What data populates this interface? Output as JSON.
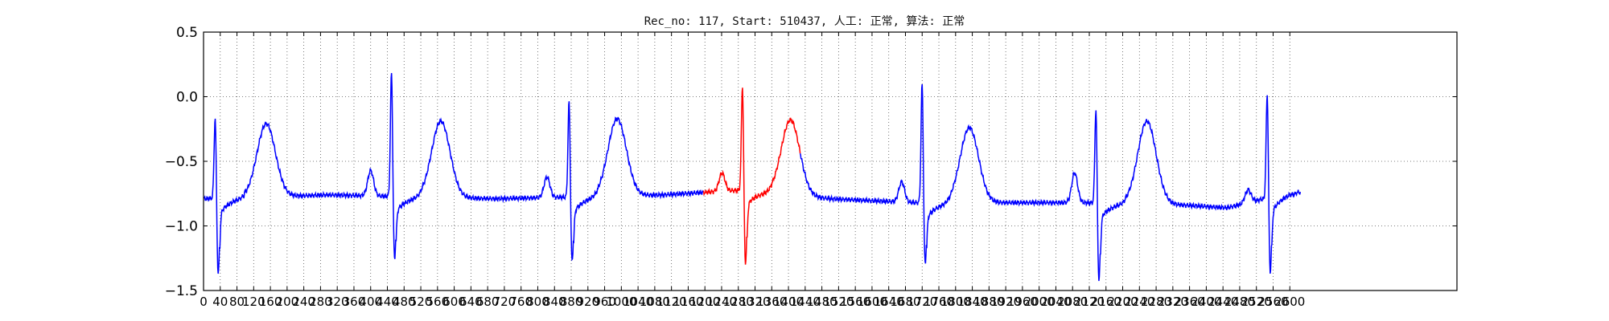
{
  "chart_data": {
    "type": "line",
    "title": "Rec_no: 117, Start: 510437, 人工: 正常, 算法: 正常",
    "xlabel": "",
    "ylabel": "",
    "xlim": [
      0,
      3000
    ],
    "ylim": [
      -1.5,
      0.5
    ],
    "yticks": [
      0.5,
      0.0,
      -0.5,
      -1.0,
      -1.5
    ],
    "ytick_labels": [
      "0.5",
      "0.0",
      "−0.5",
      "−1.0",
      "−1.5"
    ],
    "xticks": [
      0,
      40,
      80,
      120,
      160,
      200,
      240,
      280,
      320,
      360,
      400,
      440,
      480,
      520,
      560,
      600,
      640,
      680,
      720,
      760,
      800,
      840,
      880,
      920,
      960,
      1000,
      1040,
      1080,
      1120,
      1160,
      1200,
      1240,
      1280,
      1320,
      1360,
      1400,
      1440,
      1480,
      1520,
      1560,
      1600,
      1640,
      1680,
      1720,
      1760,
      1800,
      1840,
      1880,
      1920,
      1960,
      2000,
      2040,
      2080,
      2120,
      2160,
      2200,
      2240,
      2280,
      2320,
      2360,
      2400,
      2440,
      2480,
      2520,
      2560,
      2600
    ],
    "grid": true,
    "colors": {
      "series_main": "#0000ff",
      "series_highlight": "#ff0000",
      "axes": "#000000",
      "grid": "#555555"
    },
    "beats": [
      {
        "r": 28,
        "rpeak": -0.12,
        "s": -1.42
      },
      {
        "r": 450,
        "rpeak": 0.23,
        "s": -1.3
      },
      {
        "r": 875,
        "rpeak": 0.0,
        "s": -1.32
      },
      {
        "r": 1290,
        "rpeak": 0.13,
        "s": -1.34
      },
      {
        "r": 1720,
        "rpeak": 0.14,
        "s": -1.34
      },
      {
        "r": 2136,
        "rpeak": -0.05,
        "s": -1.47
      },
      {
        "r": 2546,
        "rpeak": 0.07,
        "s": -1.41
      }
    ],
    "t_waves": [
      {
        "x": 150,
        "peak": -0.21
      },
      {
        "x": 568,
        "peak": -0.19
      },
      {
        "x": 990,
        "peak": -0.17
      },
      {
        "x": 1405,
        "peak": -0.18
      },
      {
        "x": 1833,
        "peak": -0.24
      },
      {
        "x": 2258,
        "peak": -0.19
      }
    ],
    "p_waves": [
      {
        "x": 400,
        "peak": -0.57
      },
      {
        "x": 822,
        "peak": -0.62
      },
      {
        "x": 1241,
        "peak": -0.59
      },
      {
        "x": 1671,
        "peak": -0.66
      },
      {
        "x": 2085,
        "peak": -0.59
      },
      {
        "x": 2500,
        "peak": -0.72
      }
    ],
    "baseline": [
      [
        0,
        -0.79
      ],
      [
        300,
        -0.76
      ],
      [
        700,
        -0.79
      ],
      [
        1100,
        -0.76
      ],
      [
        1300,
        -0.72
      ],
      [
        1500,
        -0.79
      ],
      [
        1700,
        -0.82
      ],
      [
        1900,
        -0.82
      ],
      [
        2100,
        -0.82
      ],
      [
        2300,
        -0.83
      ],
      [
        2450,
        -0.86
      ],
      [
        2600,
        -0.74
      ]
    ],
    "x_end": 2625,
    "highlight_range": [
      1196,
      1428
    ]
  }
}
